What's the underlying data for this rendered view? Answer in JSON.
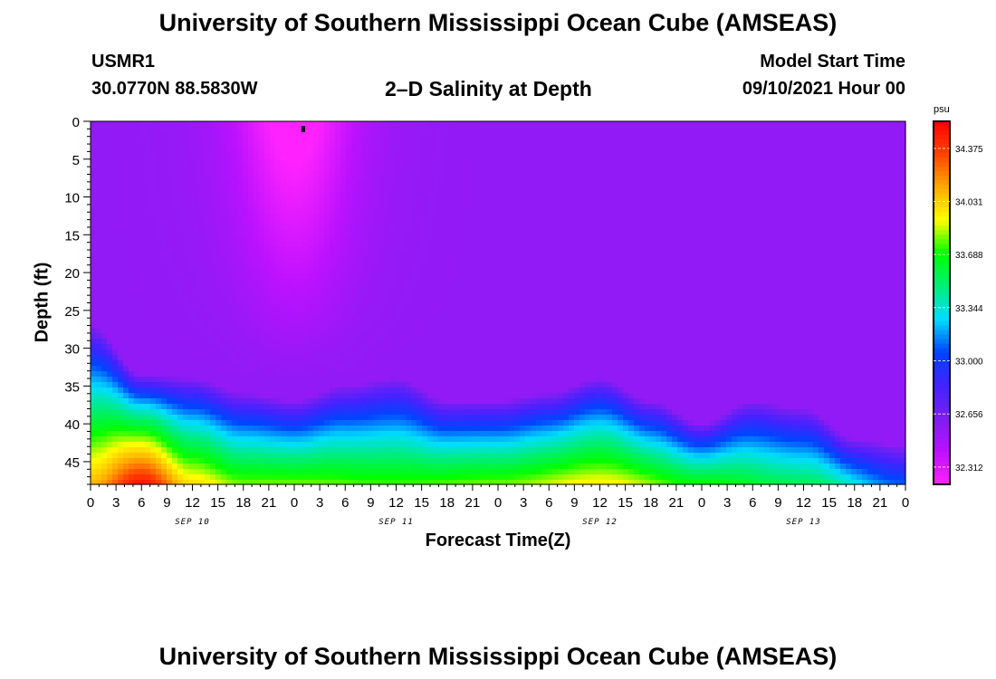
{
  "header": {
    "title": "University of Southern Mississippi Ocean Cube (AMSEAS)",
    "station": "USMR1",
    "latlon": "30.0770N  88.5830W",
    "subtitle": "2–D Salinity at Depth",
    "model_start_label": "Model Start Time",
    "model_start_value": "09/10/2021 Hour 00"
  },
  "footer": {
    "title": "University of Southern Mississippi Ocean Cube (AMSEAS)"
  },
  "chart_data": {
    "type": "heatmap",
    "title": "2–D Salinity at Depth",
    "xlabel": "Forecast Time(Z)",
    "ylabel": "Depth (ft)",
    "x_range_hours": [
      0,
      96
    ],
    "x_tick_step_hours": 3,
    "x_tick_labels": [
      "0",
      "3",
      "6",
      "9",
      "12",
      "15",
      "18",
      "21",
      "0",
      "3",
      "6",
      "9",
      "12",
      "15",
      "18",
      "21",
      "0",
      "3",
      "6",
      "9",
      "12",
      "15",
      "18",
      "21",
      "0",
      "3",
      "6",
      "9",
      "12",
      "15",
      "18",
      "21",
      "0"
    ],
    "date_labels": [
      {
        "label": "SEP 10",
        "hour": 12
      },
      {
        "label": "SEP 11",
        "hour": 36
      },
      {
        "label": "SEP 12",
        "hour": 60
      },
      {
        "label": "SEP 13",
        "hour": 84
      }
    ],
    "y_range_ft": [
      0,
      48
    ],
    "y_inverted": true,
    "y_ticks": [
      0,
      5,
      10,
      15,
      20,
      25,
      30,
      35,
      40,
      45
    ],
    "colorbar": {
      "unit": "psu",
      "ticks": [
        "34.375",
        "34.031",
        "33.688",
        "33.344",
        "33.000",
        "32.656",
        "32.312"
      ],
      "range": [
        32.2,
        34.55
      ],
      "colors": [
        "#ff22ff",
        "#bb11ff",
        "#7b1ff2",
        "#4422ff",
        "#0044ff",
        "#00ddff",
        "#00ee77",
        "#00ff00",
        "#ffff00",
        "#ffaa00",
        "#ff4400",
        "#ff0000"
      ]
    },
    "salinity_profile": {
      "description_units": "psu",
      "surface_min": 32.25,
      "background": 32.55,
      "interface_depth_ft_by_hour": [
        {
          "hour": 0,
          "depth": 31
        },
        {
          "hour": 6,
          "depth": 37.5
        },
        {
          "hour": 12,
          "depth": 38
        },
        {
          "hour": 18,
          "depth": 40
        },
        {
          "hour": 24,
          "depth": 41
        },
        {
          "hour": 30,
          "depth": 39
        },
        {
          "hour": 36,
          "depth": 38
        },
        {
          "hour": 42,
          "depth": 41
        },
        {
          "hour": 48,
          "depth": 41
        },
        {
          "hour": 54,
          "depth": 40
        },
        {
          "hour": 60,
          "depth": 38
        },
        {
          "hour": 66,
          "depth": 41
        },
        {
          "hour": 72,
          "depth": 44
        },
        {
          "hour": 78,
          "depth": 41
        },
        {
          "hour": 84,
          "depth": 42
        },
        {
          "hour": 90,
          "depth": 46
        },
        {
          "hour": 96,
          "depth": 47
        }
      ],
      "bottom_salinity_by_hour": [
        {
          "hour": 0,
          "value": 34.1
        },
        {
          "hour": 6,
          "value": 34.5
        },
        {
          "hour": 12,
          "value": 34.0
        },
        {
          "hour": 18,
          "value": 33.8
        },
        {
          "hour": 24,
          "value": 33.8
        },
        {
          "hour": 36,
          "value": 33.75
        },
        {
          "hour": 48,
          "value": 33.8
        },
        {
          "hour": 60,
          "value": 33.95
        },
        {
          "hour": 72,
          "value": 33.7
        },
        {
          "hour": 84,
          "value": 33.55
        },
        {
          "hour": 96,
          "value": 33.1
        }
      ]
    }
  }
}
